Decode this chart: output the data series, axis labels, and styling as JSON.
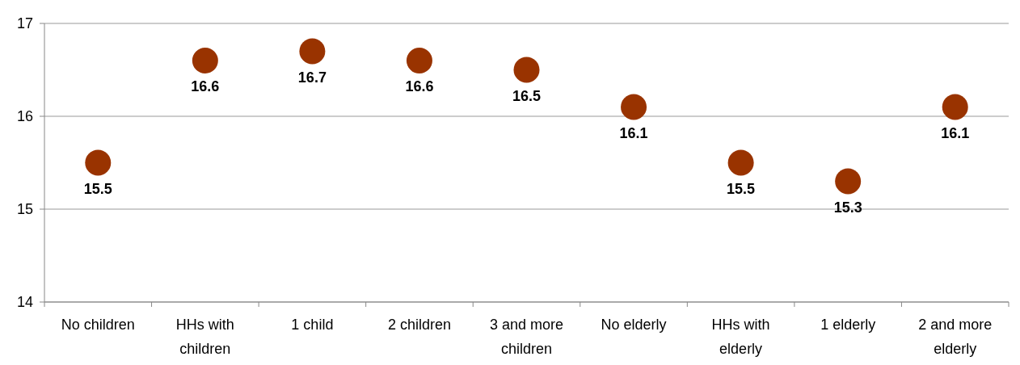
{
  "chart_data": {
    "type": "scatter",
    "categories": [
      "No children",
      "HHs with children",
      "1 child",
      "2 children",
      "3 and more children",
      "No elderly",
      "HHs with elderly",
      "1 elderly",
      "2 and more elderly"
    ],
    "series": [
      {
        "color": "#993300",
        "values": [
          15.5,
          16.6,
          16.7,
          16.6,
          16.5,
          16.1,
          15.5,
          15.3,
          16.1
        ]
      }
    ],
    "ylim": [
      14,
      17
    ],
    "yticks": [
      14,
      15,
      16,
      17
    ],
    "grid": "y",
    "marker": "circle",
    "data_labels": true
  }
}
